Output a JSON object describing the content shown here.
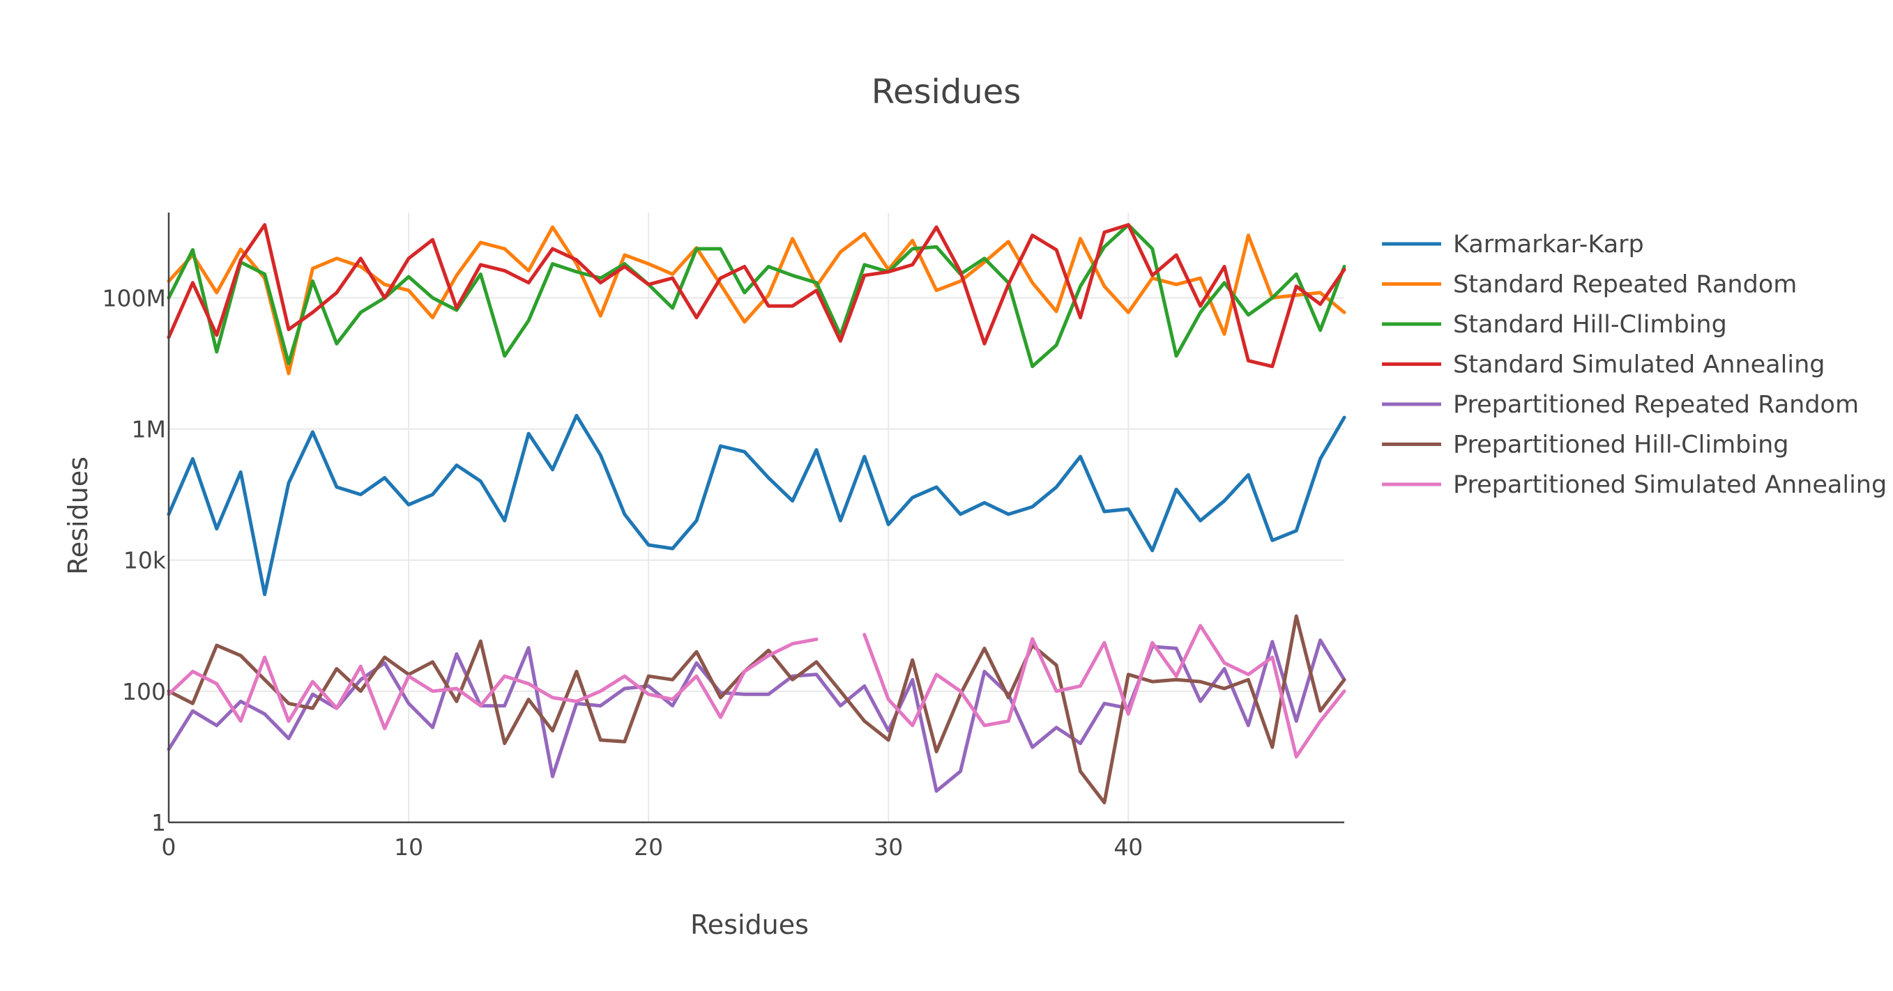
{
  "chart_data": {
    "type": "line",
    "title": "Residues",
    "xlabel": "Residues",
    "ylabel": "Residues",
    "y_scale": "log",
    "xlim": [
      0,
      49
    ],
    "ylim": [
      1,
      2000000000
    ],
    "x_ticks": [
      0,
      10,
      20,
      30,
      40
    ],
    "x_tick_labels": [
      "0",
      "10",
      "20",
      "30",
      "40"
    ],
    "y_ticks": [
      1,
      100,
      10000,
      1000000,
      100000000
    ],
    "y_tick_labels": [
      "1",
      "100",
      "10k",
      "1M",
      "100M"
    ],
    "grid": true,
    "legend_position": "right",
    "x": [
      0,
      1,
      2,
      3,
      4,
      5,
      6,
      7,
      8,
      9,
      10,
      11,
      12,
      13,
      14,
      15,
      16,
      17,
      18,
      19,
      20,
      21,
      22,
      23,
      24,
      25,
      26,
      27,
      28,
      29,
      30,
      31,
      32,
      33,
      34,
      35,
      36,
      37,
      38,
      39,
      40,
      41,
      42,
      43,
      44,
      45,
      46,
      47,
      48,
      49
    ],
    "series": [
      {
        "name": "Karmarkar-Karp",
        "color": "#1f77b4",
        "values": [
          50000,
          350000,
          30000,
          220000,
          3000,
          150000,
          900000,
          130000,
          100000,
          180000,
          70000,
          100000,
          280000,
          160000,
          40000,
          850000,
          240000,
          1600000,
          400000,
          50000,
          17000,
          15000,
          40000,
          550000,
          450000,
          180000,
          80000,
          480000,
          40000,
          380000,
          35000,
          90000,
          130000,
          50000,
          75000,
          50000,
          65000,
          130000,
          380000,
          55000,
          60000,
          14000,
          120000,
          40000,
          80000,
          200000,
          20000,
          28000,
          350000,
          1500000
        ]
      },
      {
        "name": "Standard Repeated Random",
        "color": "#ff7f0e",
        "values": [
          180000000,
          450000000,
          120000000,
          550000000,
          200000000,
          7000000,
          280000000,
          400000000,
          300000000,
          160000000,
          130000000,
          50000000,
          220000000,
          700000000,
          560000000,
          260000000,
          1200000000,
          330000000,
          53000000,
          450000000,
          330000000,
          230000000,
          580000000,
          160000000,
          43000000,
          110000000,
          800000000,
          150000000,
          500000000,
          950000000,
          270000000,
          750000000,
          130000000,
          180000000,
          350000000,
          720000000,
          170000000,
          62000000,
          800000000,
          150000000,
          60000000,
          200000000,
          160000000,
          200000000,
          28000000,
          900000000,
          100000000,
          110000000,
          120000000,
          60000000
        ]
      },
      {
        "name": "Standard Hill-Climbing",
        "color": "#2ca02c",
        "values": [
          100000000,
          540000000,
          15000000,
          350000000,
          230000000,
          10000000,
          180000000,
          20000000,
          60000000,
          100000000,
          210000000,
          100000000,
          65000000,
          230000000,
          13000000,
          45000000,
          330000000,
          250000000,
          200000000,
          330000000,
          160000000,
          70000000,
          560000000,
          560000000,
          120000000,
          300000000,
          220000000,
          170000000,
          27000000,
          320000000,
          250000000,
          560000000,
          600000000,
          230000000,
          400000000,
          170000000,
          9000000,
          19000000,
          150000000,
          600000000,
          1300000000,
          560000000,
          13000000,
          60000000,
          170000000,
          55000000,
          100000000,
          230000000,
          32000000,
          300000000
        ]
      },
      {
        "name": "Standard Simulated Annealing",
        "color": "#d62728",
        "values": [
          25000000,
          170000000,
          27000000,
          380000000,
          1300000000,
          33000000,
          60000000,
          120000000,
          400000000,
          100000000,
          400000000,
          770000000,
          70000000,
          320000000,
          260000000,
          170000000,
          560000000,
          380000000,
          170000000,
          300000000,
          160000000,
          200000000,
          50000000,
          200000000,
          300000000,
          75000000,
          75000000,
          130000000,
          22000000,
          220000000,
          250000000,
          320000000,
          1200000000,
          250000000,
          20000000,
          160000000,
          900000000,
          540000000,
          50000000,
          1000000000,
          1300000000,
          220000000,
          450000000,
          75000000,
          300000000,
          11000000,
          9000000,
          150000000,
          80000000,
          270000000
        ]
      },
      {
        "name": "Prepartitioned Repeated Random",
        "color": "#9467bd",
        "values": [
          13,
          50,
          30,
          70,
          45,
          19,
          90,
          55,
          150,
          270,
          65,
          28,
          370,
          60,
          60,
          460,
          5,
          65,
          60,
          110,
          120,
          60,
          270,
          95,
          90,
          90,
          170,
          180,
          60,
          120,
          25,
          150,
          3,
          6,
          200,
          90,
          14,
          28,
          16,
          65,
          55,
          480,
          450,
          70,
          220,
          30,
          570,
          35,
          600,
          150
        ]
      },
      {
        "name": "Prepartitioned Hill-Climbing",
        "color": "#8c564b",
        "values": [
          100,
          65,
          500,
          350,
          150,
          65,
          55,
          220,
          100,
          330,
          180,
          280,
          70,
          580,
          16,
          75,
          25,
          200,
          18,
          17,
          170,
          150,
          400,
          80,
          200,
          420,
          150,
          280,
          100,
          35,
          18,
          300,
          12,
          90,
          450,
          80,
          500,
          250,
          6,
          2,
          180,
          140,
          150,
          140,
          110,
          150,
          14,
          1400,
          50,
          150
        ]
      },
      {
        "name": "Prepartitioned Simulated Annealing",
        "color": "#e377c2",
        "values": [
          90,
          200,
          130,
          35,
          330,
          35,
          140,
          55,
          240,
          27,
          170,
          100,
          110,
          60,
          170,
          130,
          80,
          70,
          100,
          170,
          90,
          75,
          170,
          40,
          200,
          350,
          530,
          620,
          null,
          730,
          75,
          30,
          180,
          100,
          30,
          35,
          630,
          100,
          120,
          550,
          45,
          550,
          170,
          1000,
          270,
          180,
          330,
          10,
          35,
          100
        ]
      }
    ]
  }
}
